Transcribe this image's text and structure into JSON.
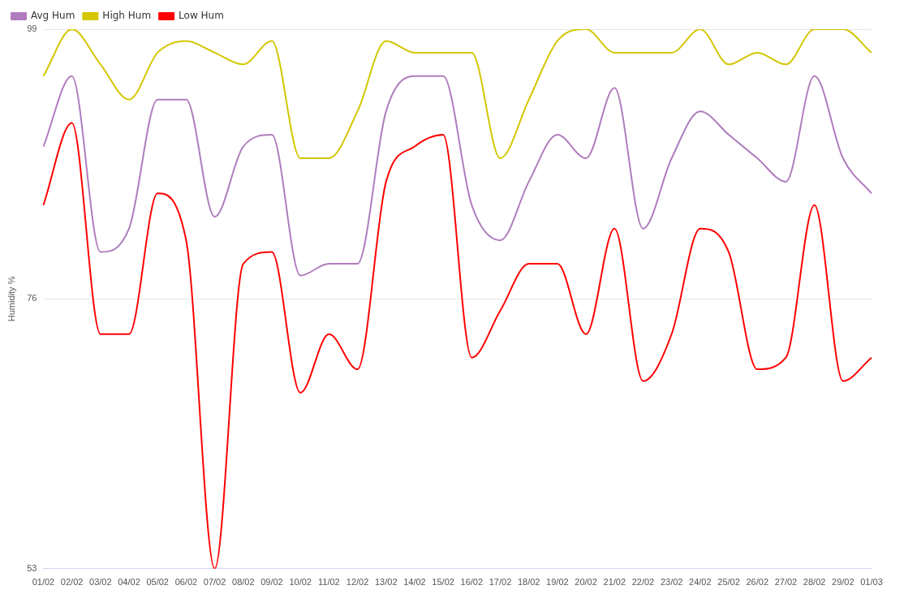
{
  "chart_data": {
    "type": "line",
    "ylabel": "Humidity %",
    "categories": [
      "01/02",
      "02/02",
      "03/02",
      "04/02",
      "05/02",
      "06/02",
      "07/02",
      "08/02",
      "09/02",
      "10/02",
      "11/02",
      "12/02",
      "13/02",
      "14/02",
      "15/02",
      "16/02",
      "17/02",
      "18/02",
      "19/02",
      "20/02",
      "21/02",
      "22/02",
      "23/02",
      "24/02",
      "25/02",
      "26/02",
      "27/02",
      "28/02",
      "29/02",
      "01/03"
    ],
    "series": [
      {
        "name": "Avg Hum",
        "color": "#b07cbe",
        "values": [
          89,
          95,
          80,
          82,
          93,
          93,
          83,
          89,
          90,
          78,
          79,
          79,
          92,
          95,
          95,
          84,
          81,
          86,
          90,
          88,
          94,
          82,
          88,
          92,
          90,
          88,
          86,
          95,
          88,
          85
        ]
      },
      {
        "name": "High Hum",
        "color": "#d4c600",
        "values": [
          95,
          99,
          96,
          93,
          97,
          98,
          97,
          96,
          98,
          88,
          88,
          92,
          98,
          97,
          97,
          97,
          88,
          93,
          98,
          99,
          97,
          97,
          97,
          99,
          96,
          97,
          96,
          99,
          99,
          97
        ]
      },
      {
        "name": "Low Hum",
        "color": "#ff0000",
        "values": [
          84,
          91,
          73,
          73,
          85,
          81,
          53,
          79,
          80,
          68,
          73,
          70,
          86,
          89,
          90,
          71,
          75,
          79,
          79,
          73,
          82,
          69,
          73,
          82,
          80,
          70,
          71,
          84,
          69,
          71
        ]
      }
    ],
    "ylim": [
      53,
      99
    ],
    "yticks": [
      53,
      76,
      99
    ],
    "grid": "y",
    "legend": "top left",
    "marker": "none",
    "line_style": "solid"
  }
}
